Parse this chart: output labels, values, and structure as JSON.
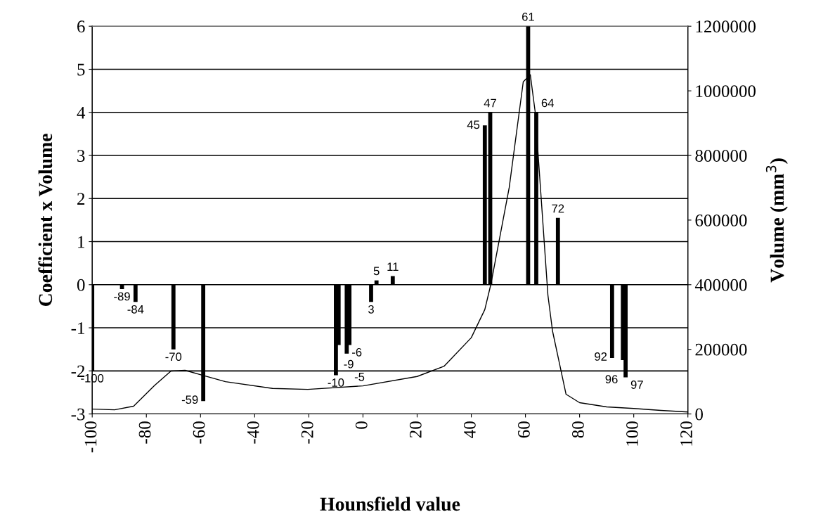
{
  "chart_data": {
    "type": "bar",
    "xlabel": "Hounsfield value",
    "ylabel": "Coefficient x Volume",
    "y2label": "Volume (mm$^{3}$)",
    "xlim": [
      -100,
      120
    ],
    "xticks": [
      -100,
      -80,
      -60,
      -40,
      -20,
      0,
      20,
      40,
      60,
      80,
      100,
      120
    ],
    "ylim": [
      -3,
      6
    ],
    "yticks": [
      -3,
      -2,
      -1,
      0,
      1,
      2,
      3,
      4,
      5,
      6
    ],
    "y2lim": [
      0,
      1200000
    ],
    "y2ticks": [
      0,
      200000,
      400000,
      600000,
      800000,
      1000000,
      1200000
    ],
    "grid": "y",
    "series": [
      {
        "color": "#000000",
        "x": [
          -100,
          -89,
          -84,
          -70,
          -59,
          -10,
          -9,
          -6,
          -5,
          3,
          5,
          11,
          45,
          47,
          61,
          64,
          72,
          92,
          96,
          97
        ],
        "values": [
          -2.0,
          -0.1,
          -0.4,
          -1.5,
          -2.7,
          -2.1,
          -1.4,
          -1.6,
          -1.4,
          -0.4,
          0.1,
          0.2,
          3.7,
          4.0,
          6.0,
          4.0,
          1.55,
          -1.7,
          -1.75,
          -2.15
        ]
      },
      {
        "type": "line",
        "axis": "y2",
        "color": "#000000",
        "x": [
          -100,
          -91.7,
          -84.7,
          -76.9,
          -70.9,
          -65.7,
          -59.4,
          -50.8,
          -33.4,
          -20.4,
          0,
          20,
          30,
          40,
          45,
          47.2,
          54,
          59.2,
          61.8,
          63.6,
          68.3,
          70,
          75,
          80,
          90,
          100,
          110,
          120
        ],
        "values": [
          15000,
          13000,
          24000,
          89000,
          133000,
          135000,
          120000,
          100000,
          79000,
          76000,
          87000,
          116000,
          148000,
          236000,
          323000,
          400000,
          700000,
          1028000,
          1050000,
          935000,
          368000,
          257000,
          61000,
          35000,
          22000,
          17000,
          11000,
          6000
        ]
      }
    ],
    "annotations": [
      {
        "text": "-100",
        "x": -100,
        "y": -2.0
      },
      {
        "text": "-89",
        "x": -89,
        "y": -0.1
      },
      {
        "text": "-84",
        "x": -84,
        "y": -0.4
      },
      {
        "text": "-70",
        "x": -70,
        "y": -1.5
      },
      {
        "text": "-59",
        "x": -59,
        "y": -2.7
      },
      {
        "text": "-10",
        "x": -10,
        "y": -2.1
      },
      {
        "text": "-9",
        "x": -9,
        "y": -1.4
      },
      {
        "text": "-6",
        "x": -6,
        "y": -1.6
      },
      {
        "text": "-5",
        "x": -5,
        "y": -1.4
      },
      {
        "text": "3",
        "x": 3,
        "y": -0.4
      },
      {
        "text": "5",
        "x": 5,
        "y": 0.1
      },
      {
        "text": "11",
        "x": 11,
        "y": 0.2
      },
      {
        "text": "45",
        "x": 45,
        "y": 3.7
      },
      {
        "text": "47",
        "x": 47,
        "y": 4.0
      },
      {
        "text": "61",
        "x": 61,
        "y": 6.0
      },
      {
        "text": "64",
        "x": 64,
        "y": 4.0
      },
      {
        "text": "72",
        "x": 72,
        "y": 1.55
      },
      {
        "text": "92",
        "x": 92,
        "y": -1.7
      },
      {
        "text": "96",
        "x": 96,
        "y": -1.75
      },
      {
        "text": "97",
        "x": 97,
        "y": -2.15
      }
    ]
  }
}
